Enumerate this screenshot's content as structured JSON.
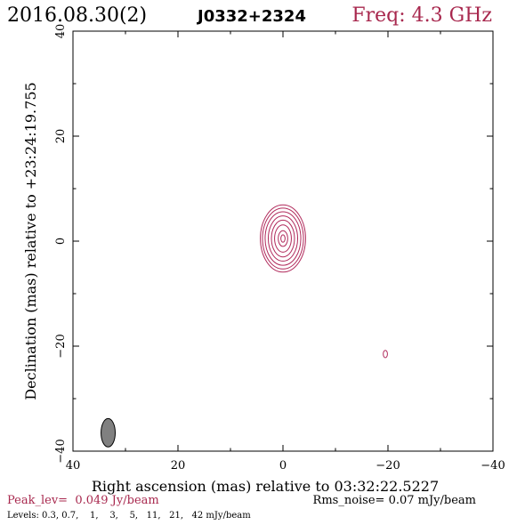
{
  "header": {
    "date": "2016.08.30(2)",
    "source": "J0332+2324",
    "freq": "Freq: 4.3 GHz"
  },
  "colors": {
    "contour": "#b0285a",
    "freq_text": "#a8284e",
    "peak_text": "#a8284e",
    "beam_fill": "#808080",
    "axis": "#000000"
  },
  "chart_data": {
    "type": "contour",
    "xlabel": "Right ascension (mas) relative to 03:32:22.5227",
    "ylabel": "Declination (mas) relative to +23:24:19.755",
    "xlim": [
      40,
      -40
    ],
    "ylim": [
      -40,
      40
    ],
    "x_ticks": [
      40,
      20,
      0,
      -20,
      -40
    ],
    "y_ticks": [
      -40,
      -20,
      0,
      20,
      40
    ],
    "x_tick_labels": [
      "40",
      "20",
      "0",
      "−20",
      "−40"
    ],
    "y_tick_labels": [
      "−40",
      "−20",
      "0",
      "20",
      "40"
    ],
    "levels_mJy": [
      0.3,
      0.7,
      1,
      3,
      5,
      11,
      21,
      42
    ],
    "main_component": {
      "center": [
        0,
        0.5
      ],
      "contour_semi_axes": [
        [
          4.3,
          6.4
        ],
        [
          3.9,
          5.8
        ],
        [
          3.4,
          5.1
        ],
        [
          2.8,
          4.3
        ],
        [
          2.2,
          3.5
        ],
        [
          1.6,
          2.6
        ],
        [
          0.9,
          1.5
        ],
        [
          0.4,
          0.7
        ]
      ]
    },
    "secondary_component": {
      "center": [
        -19.5,
        -21.5
      ],
      "contour_semi_axes": [
        [
          0.4,
          0.7
        ]
      ]
    },
    "beam": {
      "center": [
        33.3,
        -36.5
      ],
      "semi_axes": [
        1.35,
        2.7
      ]
    }
  },
  "footer": {
    "peak": "Peak_lev=  0.049 Jy/beam",
    "rms": "Rms_noise= 0.07 mJy/beam",
    "levels": "Levels: 0.3, 0.7,    1,    3,    5,   11,   21,   42 mJy/beam"
  }
}
